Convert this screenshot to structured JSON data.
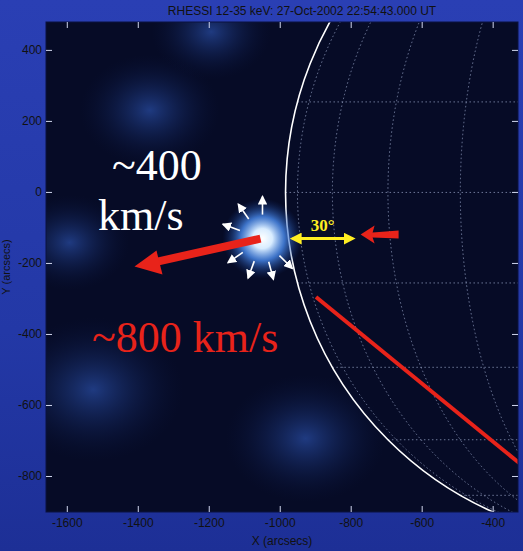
{
  "chart_data": {
    "type": "image",
    "title": "RHESSI 12-35 keV: 27-Oct-2002 22:54:43.000 UT",
    "x_label": "X (arcsecs)",
    "y_label": "Y (arcsecs)",
    "xlim": [
      -1660,
      -330
    ],
    "ylim": [
      -900,
      480
    ],
    "xticks": [
      -1600,
      -1400,
      -1200,
      -1000,
      -800,
      -600,
      -400
    ],
    "yticks": [
      -800,
      -600,
      -400,
      -200,
      0,
      200,
      400
    ],
    "source": {
      "x": -1050,
      "y": -130
    },
    "limb_radius": 985,
    "annotations": [
      "~400 km/s",
      "~800 km/s",
      "30°"
    ]
  }
}
